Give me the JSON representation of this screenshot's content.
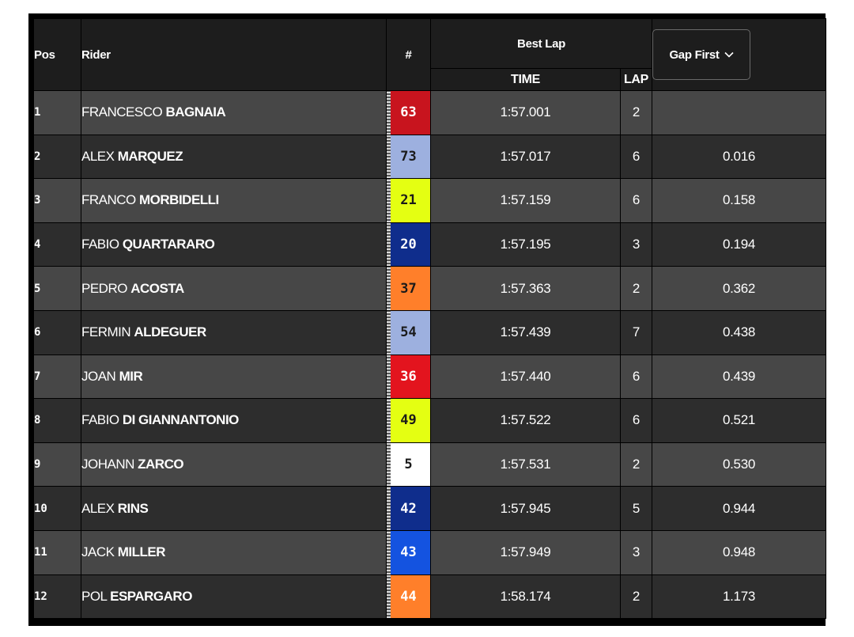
{
  "headers": {
    "pos": "Pos",
    "rider": "Rider",
    "number": "#",
    "best_lap": "Best Lap",
    "time": "TIME",
    "lap": "LAP",
    "gap_first": "Gap First"
  },
  "icons": {
    "gap_dropdown": "chevron-down-icon"
  },
  "colors": {
    "row_odd": "#474747",
    "row_even": "#2d2d2d",
    "header_bg": "#1d1d1d"
  },
  "rows": [
    {
      "pos": "1",
      "first": "FRANCESCO",
      "last": "BAGNAIA",
      "number": "63",
      "num_bg": "#c8141e",
      "num_fg": "#ffffff",
      "time": "1:57.001",
      "lap": "2",
      "gap": ""
    },
    {
      "pos": "2",
      "first": "ALEX",
      "last": "MARQUEZ",
      "number": "73",
      "num_bg": "#9db0df",
      "num_fg": "#1a1a1a",
      "time": "1:57.017",
      "lap": "6",
      "gap": "0.016"
    },
    {
      "pos": "3",
      "first": "FRANCO",
      "last": "MORBIDELLI",
      "number": "21",
      "num_bg": "#e4ff12",
      "num_fg": "#1a1a1a",
      "time": "1:57.159",
      "lap": "6",
      "gap": "0.158"
    },
    {
      "pos": "4",
      "first": "FABIO",
      "last": "QUARTARARO",
      "number": "20",
      "num_bg": "#0f2d8c",
      "num_fg": "#ffffff",
      "time": "1:57.195",
      "lap": "3",
      "gap": "0.194"
    },
    {
      "pos": "5",
      "first": "PEDRO",
      "last": "ACOSTA",
      "number": "37",
      "num_bg": "#ff7f2a",
      "num_fg": "#1a1a1a",
      "time": "1:57.363",
      "lap": "2",
      "gap": "0.362"
    },
    {
      "pos": "6",
      "first": "FERMIN",
      "last": "ALDEGUER",
      "number": "54",
      "num_bg": "#9db0df",
      "num_fg": "#1a1a1a",
      "time": "1:57.439",
      "lap": "7",
      "gap": "0.438"
    },
    {
      "pos": "7",
      "first": "JOAN",
      "last": "MIR",
      "number": "36",
      "num_bg": "#e3141e",
      "num_fg": "#ffffff",
      "time": "1:57.440",
      "lap": "6",
      "gap": "0.439"
    },
    {
      "pos": "8",
      "first": "FABIO",
      "last": "DI GIANNANTONIO",
      "number": "49",
      "num_bg": "#e4ff12",
      "num_fg": "#1a1a1a",
      "time": "1:57.522",
      "lap": "6",
      "gap": "0.521"
    },
    {
      "pos": "9",
      "first": "JOHANN",
      "last": "ZARCO",
      "number": "5",
      "num_bg": "#ffffff",
      "num_fg": "#1a1a1a",
      "time": "1:57.531",
      "lap": "2",
      "gap": "0.530"
    },
    {
      "pos": "10",
      "first": "ALEX",
      "last": "RINS",
      "number": "42",
      "num_bg": "#0f2d8c",
      "num_fg": "#ffffff",
      "time": "1:57.945",
      "lap": "5",
      "gap": "0.944"
    },
    {
      "pos": "11",
      "first": "JACK",
      "last": "MILLER",
      "number": "43",
      "num_bg": "#1453e0",
      "num_fg": "#ffffff",
      "time": "1:57.949",
      "lap": "3",
      "gap": "0.948"
    },
    {
      "pos": "12",
      "first": "POL",
      "last": "ESPARGARO",
      "number": "44",
      "num_bg": "#ff7f2a",
      "num_fg": "#ffffff",
      "time": "1:58.174",
      "lap": "2",
      "gap": "1.173"
    }
  ]
}
